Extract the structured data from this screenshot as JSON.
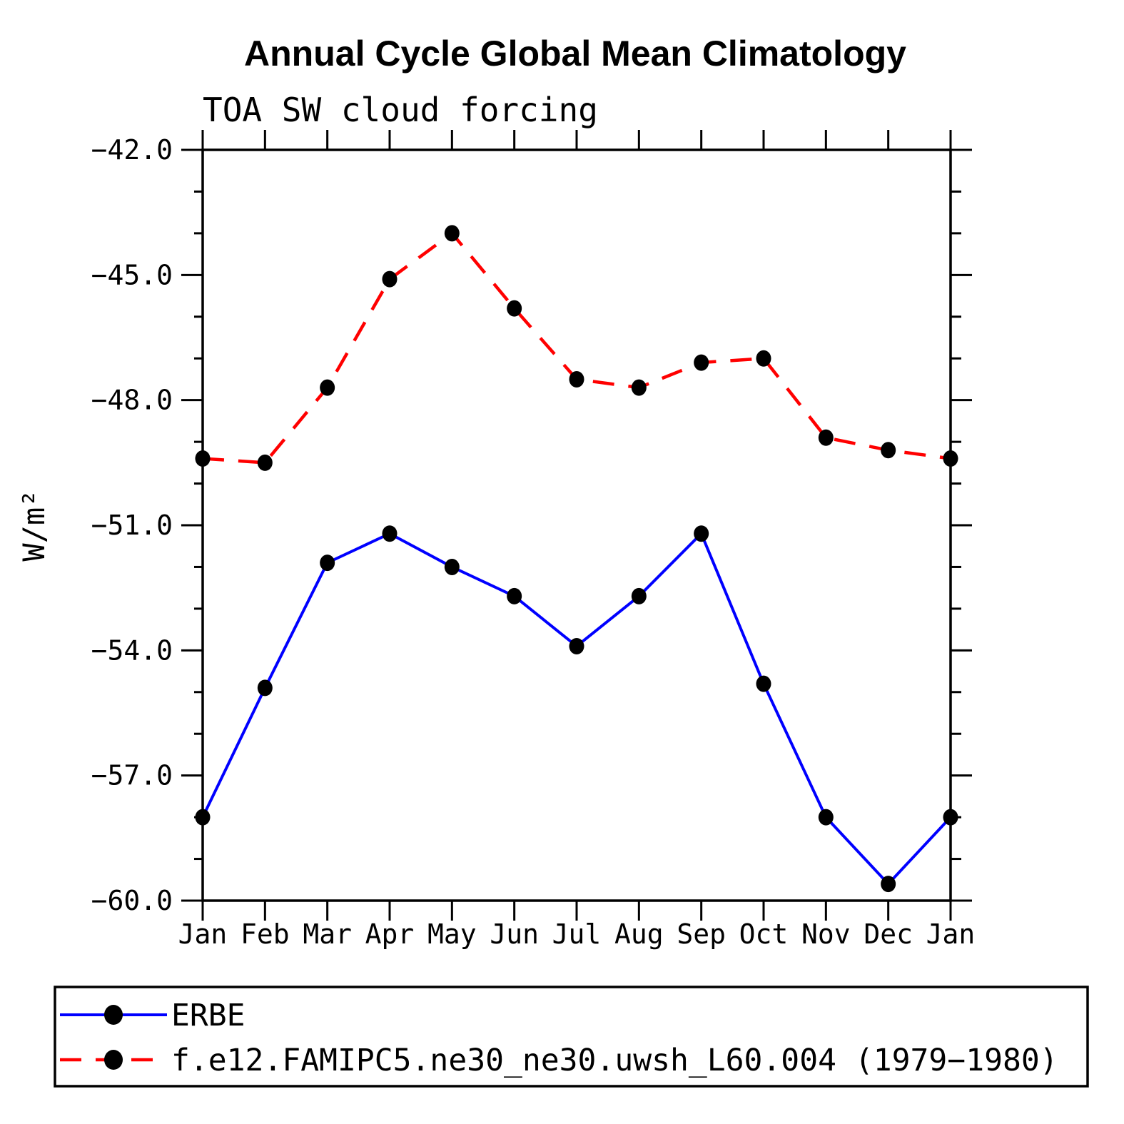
{
  "title": "Annual Cycle Global Mean Climatology",
  "subtitle": "TOA SW cloud forcing",
  "y_axis_label": "W/m²",
  "chart_data": {
    "type": "line",
    "title": "Annual Cycle Global Mean Climatology",
    "subtitle": "TOA SW cloud forcing",
    "xlabel": "",
    "ylabel": "W/m²",
    "categories": [
      "Jan",
      "Feb",
      "Mar",
      "Apr",
      "May",
      "Jun",
      "Jul",
      "Aug",
      "Sep",
      "Oct",
      "Nov",
      "Dec",
      "Jan"
    ],
    "series": [
      {
        "name": "ERBE",
        "color": "#0000ff",
        "line_style": "solid",
        "marker": "filled-circle",
        "values": [
          -58.0,
          -54.9,
          -51.9,
          -51.2,
          -52.0,
          -52.7,
          -53.9,
          -52.7,
          -51.2,
          -54.8,
          -58.0,
          -59.6,
          -58.0
        ]
      },
      {
        "name": "f.e12.FAMIPC5.ne30_ne30.uwsh_L60.004 (1979−1980)",
        "color": "#ff0000",
        "line_style": "dashed",
        "marker": "filled-circle",
        "values": [
          -49.4,
          -49.5,
          -47.7,
          -45.1,
          -44.0,
          -45.8,
          -47.5,
          -47.7,
          -47.1,
          -47.0,
          -48.9,
          -49.2,
          -49.4
        ]
      }
    ],
    "marker_color": "#000000",
    "ylim": [
      -60.0,
      -42.0
    ],
    "yticks": [
      -42,
      -45,
      -48,
      -51,
      -54,
      -57,
      -60
    ],
    "ytick_labels": [
      "−42.0",
      "−45.0",
      "−48.0",
      "−51.0",
      "−54.0",
      "−57.0",
      "−60.0"
    ],
    "minor_tick_step": 1,
    "grid": false,
    "legend_position": "bottom"
  }
}
